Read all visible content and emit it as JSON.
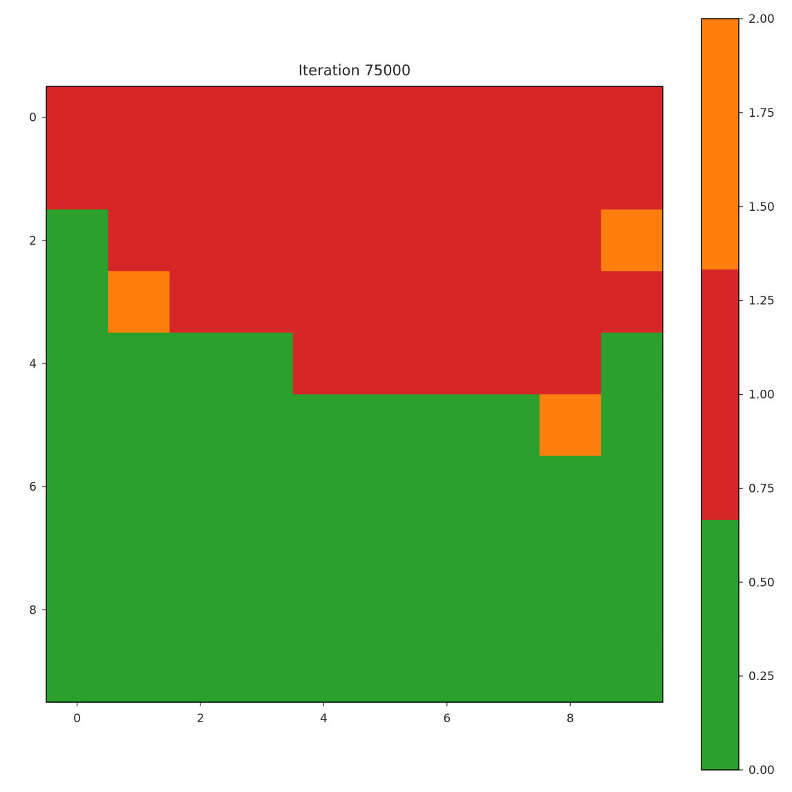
{
  "chart_data": {
    "type": "heatmap",
    "title": "Iteration 75000",
    "xlabel": "",
    "ylabel": "",
    "x_ticks": [
      0,
      2,
      4,
      6,
      8
    ],
    "y_ticks": [
      0,
      2,
      4,
      6,
      8
    ],
    "x_tick_labels": [
      "0",
      "2",
      "4",
      "6",
      "8"
    ],
    "y_tick_labels": [
      "0",
      "2",
      "4",
      "6",
      "8"
    ],
    "grid": false,
    "values": [
      [
        1,
        1,
        1,
        1,
        1,
        1,
        1,
        1,
        1,
        1
      ],
      [
        1,
        1,
        1,
        1,
        1,
        1,
        1,
        1,
        1,
        1
      ],
      [
        0,
        1,
        1,
        1,
        1,
        1,
        1,
        1,
        1,
        2
      ],
      [
        0,
        2,
        1,
        1,
        1,
        1,
        1,
        1,
        1,
        1
      ],
      [
        0,
        0,
        0,
        0,
        1,
        1,
        1,
        1,
        1,
        0
      ],
      [
        0,
        0,
        0,
        0,
        0,
        0,
        0,
        0,
        2,
        0
      ],
      [
        0,
        0,
        0,
        0,
        0,
        0,
        0,
        0,
        0,
        0
      ],
      [
        0,
        0,
        0,
        0,
        0,
        0,
        0,
        0,
        0,
        0
      ],
      [
        0,
        0,
        0,
        0,
        0,
        0,
        0,
        0,
        0,
        0
      ],
      [
        0,
        0,
        0,
        0,
        0,
        0,
        0,
        0,
        0,
        0
      ]
    ],
    "colormap": {
      "0": "#2ca02c",
      "1": "#d62728",
      "2": "#ff7f0e"
    },
    "colorbar": {
      "range": [
        0,
        2
      ],
      "position": "right",
      "ticks": [
        0,
        0.25,
        0.5,
        0.75,
        1.0,
        1.25,
        1.5,
        1.75,
        2.0
      ],
      "tick_labels": [
        "0.00",
        "0.25",
        "0.50",
        "0.75",
        "1.00",
        "1.25",
        "1.50",
        "1.75",
        "2.00"
      ]
    }
  }
}
